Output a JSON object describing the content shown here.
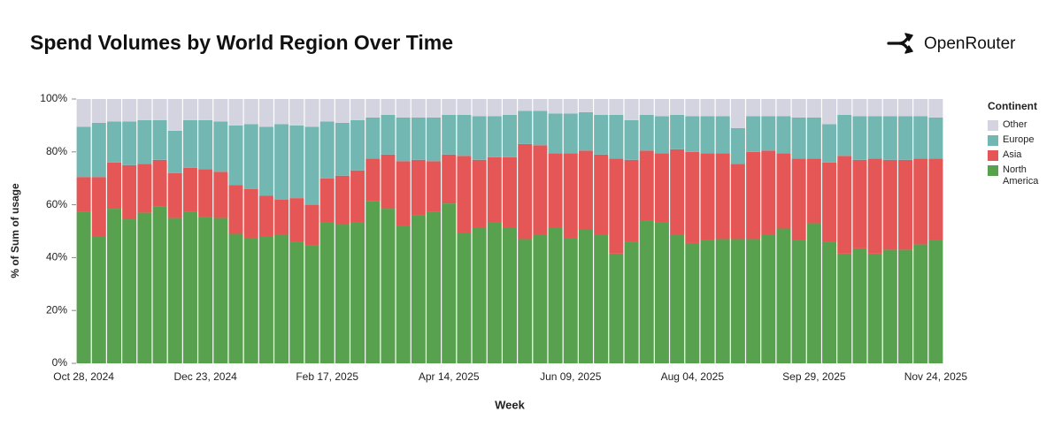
{
  "chart_data": {
    "type": "bar",
    "stacked": true,
    "title": "Spend Volumes by World Region Over Time",
    "brand": "OpenRouter",
    "x_label": "Week",
    "y_label": "% of Sum of usage",
    "legend_title": "Continent",
    "legend_position": "right",
    "categories": [
      "Oct 28, 2024",
      null,
      null,
      null,
      null,
      null,
      null,
      null,
      "Dec 23, 2024",
      null,
      null,
      null,
      null,
      null,
      null,
      null,
      "Feb 17, 2025",
      null,
      null,
      null,
      null,
      null,
      null,
      null,
      "Apr 14, 2025",
      null,
      null,
      null,
      null,
      null,
      null,
      null,
      "Jun 09, 2025",
      null,
      null,
      null,
      null,
      null,
      null,
      null,
      "Aug 04, 2025",
      null,
      null,
      null,
      null,
      null,
      null,
      null,
      "Sep 29, 2025",
      null,
      null,
      null,
      null,
      null,
      null,
      null,
      "Nov 24, 2025"
    ],
    "ylim": [
      0,
      100
    ],
    "yticks": [
      {
        "value": 0,
        "label": "0%"
      },
      {
        "value": 20,
        "label": "20%"
      },
      {
        "value": 40,
        "label": "40%"
      },
      {
        "value": 60,
        "label": "60%"
      },
      {
        "value": 80,
        "label": "80%"
      },
      {
        "value": 100,
        "label": "100%"
      }
    ],
    "series": [
      {
        "name": "North America",
        "color": "#58a14e",
        "values": [
          57.5,
          48,
          58.5,
          54.5,
          57,
          59.5,
          55,
          57.5,
          55.5,
          55,
          49,
          47.5,
          48,
          48.5,
          46,
          44.5,
          53.5,
          52.5,
          53.5,
          61.5,
          58.5,
          52,
          56,
          57.5,
          60.5,
          49.5,
          51.5,
          53.5,
          51.5,
          47,
          48.5,
          51.5,
          47.5,
          50.5,
          48.5,
          41.5,
          46,
          54,
          53.5,
          48.5,
          45.5,
          46.5,
          47,
          47,
          47,
          48.5,
          51,
          46.5,
          53,
          46,
          41.5,
          43.5,
          41.5,
          43,
          43,
          45,
          46.5
        ]
      },
      {
        "name": "Asia",
        "color": "#e45756",
        "values": [
          13,
          22.5,
          17.5,
          20.5,
          18.5,
          17.5,
          17,
          16.5,
          18,
          17.5,
          18.5,
          18.5,
          15.5,
          13.5,
          16.5,
          15.5,
          16.5,
          18.5,
          19.5,
          16,
          20.5,
          24.5,
          21,
          19,
          18.5,
          29,
          25.5,
          24.5,
          26.5,
          36,
          34,
          28,
          32,
          30,
          30.5,
          36,
          31,
          26.5,
          26,
          32.5,
          34.5,
          33,
          32.5,
          28.5,
          33,
          32,
          28.5,
          31,
          24.5,
          30,
          37,
          33.5,
          36,
          34,
          34,
          32.5,
          31
        ]
      },
      {
        "name": "Europe",
        "color": "#72b7b2",
        "values": [
          19,
          20.5,
          15.5,
          16.5,
          16.5,
          15,
          16,
          18,
          18.5,
          19,
          22.5,
          24.5,
          26,
          28.5,
          27.5,
          29.5,
          21.5,
          20,
          19,
          15.5,
          15,
          16.5,
          16,
          16.5,
          15,
          15.5,
          16.5,
          15.5,
          16,
          12.5,
          13,
          15,
          15,
          14.5,
          15,
          16.5,
          15,
          13.5,
          14,
          13,
          13.5,
          14,
          14,
          13.5,
          13.5,
          13,
          14,
          15.5,
          15.5,
          14.5,
          15.5,
          16.5,
          16,
          16.5,
          16.5,
          16,
          15.5
        ]
      },
      {
        "name": "Other",
        "color": "#d3d4df",
        "values": [
          10.5,
          9,
          8.5,
          8.5,
          8,
          8,
          12,
          8,
          8,
          8.5,
          10,
          9.5,
          10.5,
          9.5,
          10,
          10.5,
          8.5,
          9,
          8,
          7,
          6,
          7,
          7,
          7,
          6,
          6,
          6.5,
          6.5,
          6,
          4.5,
          4.5,
          5.5,
          5.5,
          5,
          6,
          6,
          8,
          6,
          6.5,
          6,
          6.5,
          6.5,
          6.5,
          11,
          6.5,
          6.5,
          6.5,
          7,
          7,
          9.5,
          6,
          6.5,
          6.5,
          6.5,
          6.5,
          6.5,
          7
        ]
      }
    ]
  }
}
